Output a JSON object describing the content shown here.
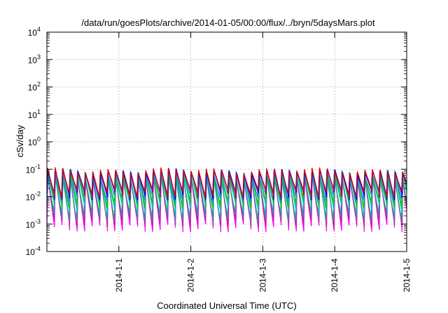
{
  "chart_data": {
    "type": "line",
    "title": "/data/run/goesPlots/archive/2014-01-05/00:00/flux/../bryn/5daysMars.plot",
    "xlabel": "Coordinated Universal Time (UTC)",
    "ylabel": "cSv/day",
    "x_start": "2013-12-31T00:00",
    "x_end": "2014-01-05T00:00",
    "x_ticks": [
      "2014-1-1",
      "2014-1-2",
      "2014-1-3",
      "2014-1-4",
      "2014-1-5"
    ],
    "y_scale": "log",
    "ylim": [
      0.0001,
      10000
    ],
    "y_ticks": [
      {
        "base": "10",
        "exp": "-4"
      },
      {
        "base": "10",
        "exp": "-3"
      },
      {
        "base": "10",
        "exp": "-2"
      },
      {
        "base": "10",
        "exp": "-1"
      },
      {
        "base": "10",
        "exp": "0"
      },
      {
        "base": "10",
        "exp": "1"
      },
      {
        "base": "10",
        "exp": "2"
      },
      {
        "base": "10",
        "exp": "3"
      },
      {
        "base": "10",
        "exp": "4"
      }
    ],
    "grid": true,
    "sawtooth_period_days": 0.105,
    "series": [
      {
        "color": "#ff00ff",
        "peak": 0.05,
        "trough": 0.0008
      },
      {
        "color": "#c0209a",
        "peak": 0.055,
        "trough": 0.0012
      },
      {
        "color": "#20a0a0",
        "peak": 0.06,
        "trough": 0.002
      },
      {
        "color": "#00ccaa",
        "peak": 0.065,
        "trough": 0.004
      },
      {
        "color": "#00cc00",
        "peak": 0.07,
        "trough": 0.006
      },
      {
        "color": "#1f7fff",
        "peak": 0.08,
        "trough": 0.01
      },
      {
        "color": "#0000ee",
        "peak": 0.085,
        "trough": 0.012
      },
      {
        "color": "#dd0000",
        "peak": 0.09,
        "trough": 0.014
      }
    ]
  }
}
